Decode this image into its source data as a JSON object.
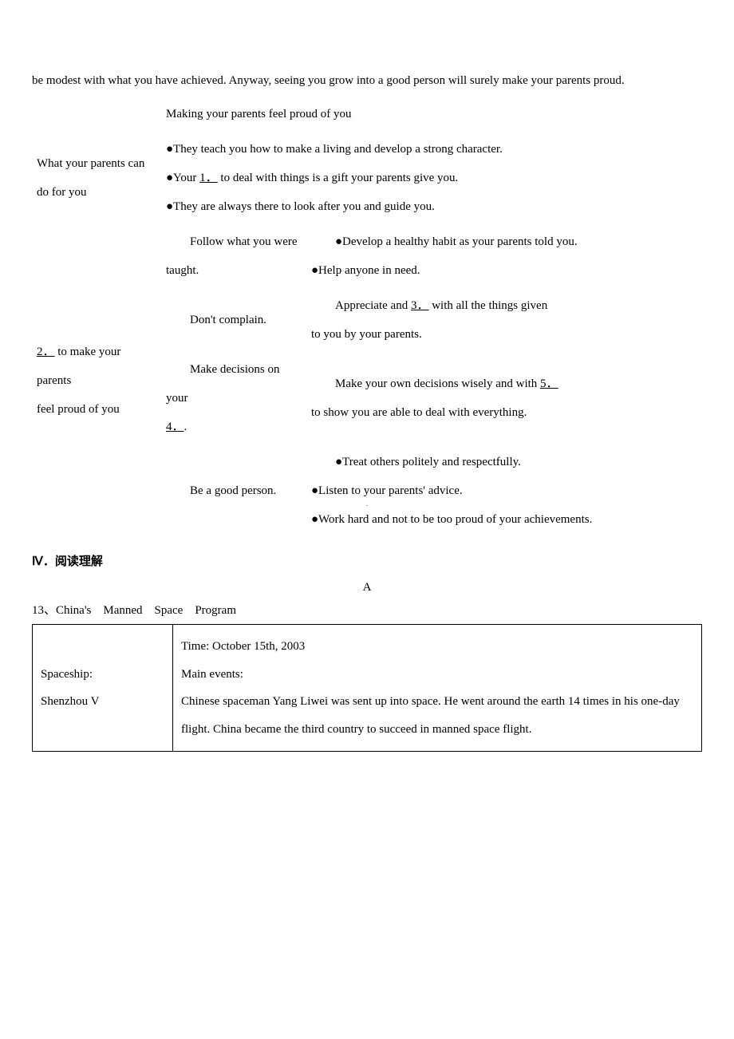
{
  "top_line": "be modest with what you have achieved. Anyway, seeing you grow into a good person will surely make your parents proud.",
  "subtitle": "Making your parents feel proud of you",
  "table1": {
    "row1": {
      "left": "What your parents can do for you",
      "right_l1": "●They teach you how to make a living and develop a strong character.",
      "right_l2a": "●Your ",
      "right_l2_blank": "1．",
      "right_l2b": " to deal with things is a gift your parents give you.",
      "right_l3": "●They are always there to look after you and guide you."
    },
    "row2_left_a": "2．",
    "row2_left_b": " to make your parents",
    "row2_left_c": "feel proud of you",
    "sub": [
      {
        "mid": "Follow what you were taught.",
        "right_l1": "●Develop a healthy habit as your parents told you.",
        "right_l2": "●Help anyone in need."
      },
      {
        "mid": "Don't complain.",
        "right_a": "Appreciate and ",
        "right_blank": "3．",
        "right_b": " with all the things given",
        "right_c": "to you by your parents."
      },
      {
        "mid_a": "Make decisions on your",
        "mid_blank": "4．",
        "mid_b": ".",
        "right_a": "Make your own decisions wisely and with ",
        "right_blank": "5．",
        "right_b": "to show you are able to deal with everything."
      },
      {
        "mid": "Be a good person.",
        "right_l1": "●Treat others politely and respectfully.",
        "right_l2": "●Listen to your parents' advice.",
        "right_l3": "●Work hard and not to be too proud of your achievements."
      }
    ]
  },
  "section4_heading": "Ⅳ．阅读理解",
  "letter_a": "A",
  "q13_label": "13、China's　Manned　Space　Program",
  "box": {
    "left_l1": "Spaceship:",
    "left_l2": "Shenzhou V",
    "right_l1": "Time: October 15th, 2003",
    "right_l2": "Main events:",
    "right_l3": "Chinese spaceman Yang Liwei was sent up into space. He went around the earth 14 times in his one-day flight. China became the third country to succeed in manned space flight."
  },
  "center_dot": "·"
}
